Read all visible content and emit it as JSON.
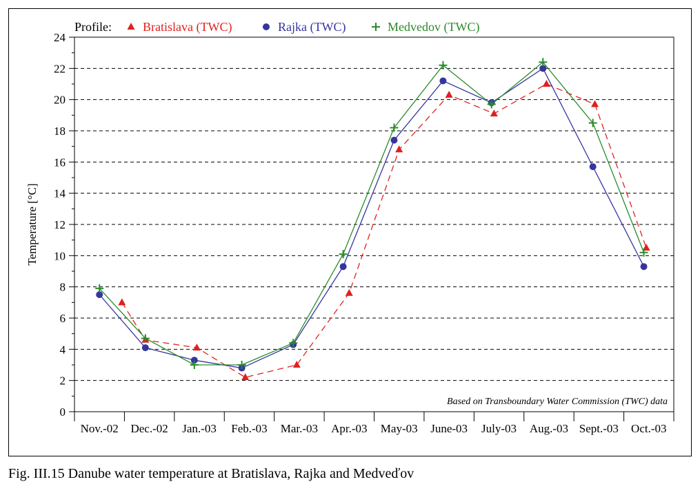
{
  "caption": "Fig. III.15  Danube water temperature at Bratislava, Rajka and Medveďov",
  "chart_data": {
    "type": "line",
    "legend_title": "Profile:",
    "legend_position": "top-left",
    "ylabel": "Temperature [°C]",
    "xlabel": "",
    "ylim": [
      0,
      24
    ],
    "yticks": [
      "0",
      "2",
      "4",
      "6",
      "8",
      "10",
      "12",
      "14",
      "16",
      "18",
      "20",
      "22",
      "24"
    ],
    "grid": "horizontal dashed",
    "categories": [
      "Nov.-02",
      "Dec.-02",
      "Jan.-03",
      "Feb.-03",
      "Mar.-03",
      "Apr.-03",
      "May-03",
      "June-03",
      "July-03",
      "Aug.-03",
      "Sept.-03",
      "Oct.-03"
    ],
    "annotation": "Based on Transboundary Water Commission (TWC) data",
    "series": [
      {
        "name": "Bratislava (TWC)",
        "color": "#e02020",
        "marker": "triangle",
        "line": "dashed",
        "points": [
          [
            0.45,
            7.0
          ],
          [
            0.92,
            4.6
          ],
          [
            1.95,
            4.1
          ],
          [
            2.92,
            2.2
          ],
          [
            3.95,
            3.0
          ],
          [
            5.0,
            7.6
          ],
          [
            6.0,
            16.8
          ],
          [
            7.0,
            20.3
          ],
          [
            7.9,
            19.1
          ],
          [
            8.95,
            21.0
          ],
          [
            9.92,
            19.7
          ],
          [
            10.95,
            10.5
          ]
        ]
      },
      {
        "name": "Rajka (TWC)",
        "color": "#3535a0",
        "marker": "circle",
        "line": "solid",
        "points": [
          [
            0.0,
            7.5
          ],
          [
            0.92,
            4.1
          ],
          [
            1.9,
            3.3
          ],
          [
            2.85,
            2.8
          ],
          [
            3.88,
            4.3
          ],
          [
            4.88,
            9.3
          ],
          [
            5.9,
            17.4
          ],
          [
            6.88,
            21.2
          ],
          [
            7.85,
            19.8
          ],
          [
            8.88,
            22.0
          ],
          [
            9.88,
            15.7
          ],
          [
            10.9,
            9.3
          ]
        ]
      },
      {
        "name": "Medvedov (TWC)",
        "color": "#2a8a2a",
        "marker": "plus",
        "line": "solid",
        "points": [
          [
            0.0,
            7.9
          ],
          [
            0.92,
            4.7
          ],
          [
            1.9,
            3.0
          ],
          [
            2.85,
            3.0
          ],
          [
            3.88,
            4.4
          ],
          [
            4.88,
            10.1
          ],
          [
            5.9,
            18.2
          ],
          [
            6.88,
            22.2
          ],
          [
            7.85,
            19.7
          ],
          [
            8.88,
            22.4
          ],
          [
            9.88,
            18.5
          ],
          [
            10.9,
            10.2
          ]
        ]
      }
    ]
  }
}
